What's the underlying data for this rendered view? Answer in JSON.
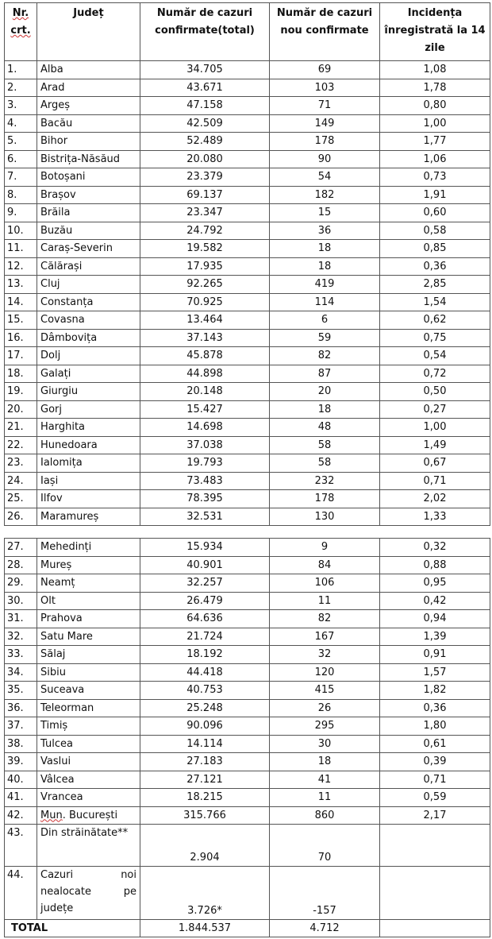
{
  "header": {
    "nr": "Nr. crt.",
    "judet": "Județ",
    "total": "Număr de cazuri confirmate(total)",
    "new": "Număr de cazuri nou confirmate",
    "incidence": "Incidența înregistrată la 14 zile"
  },
  "rows": [
    {
      "nr": "1.",
      "judet": "Alba",
      "total": "34.705",
      "new": "69",
      "inc": "1,08"
    },
    {
      "nr": "2.",
      "judet": "Arad",
      "total": "43.671",
      "new": "103",
      "inc": "1,78"
    },
    {
      "nr": "3.",
      "judet": "Argeș",
      "total": "47.158",
      "new": "71",
      "inc": "0,80"
    },
    {
      "nr": "4.",
      "judet": "Bacău",
      "total": "42.509",
      "new": "149",
      "inc": "1,00"
    },
    {
      "nr": "5.",
      "judet": "Bihor",
      "total": "52.489",
      "new": "178",
      "inc": "1,77"
    },
    {
      "nr": "6.",
      "judet": "Bistrița-Năsăud",
      "total": "20.080",
      "new": "90",
      "inc": "1,06"
    },
    {
      "nr": "7.",
      "judet": "Botoșani",
      "total": "23.379",
      "new": "54",
      "inc": "0,73"
    },
    {
      "nr": "8.",
      "judet": "Brașov",
      "total": "69.137",
      "new": "182",
      "inc": "1,91"
    },
    {
      "nr": "9.",
      "judet": "Brăila",
      "total": "23.347",
      "new": "15",
      "inc": "0,60"
    },
    {
      "nr": "10.",
      "judet": "Buzău",
      "total": "24.792",
      "new": "36",
      "inc": "0,58"
    },
    {
      "nr": "11.",
      "judet": "Caraș-Severin",
      "total": "19.582",
      "new": "18",
      "inc": "0,85"
    },
    {
      "nr": "12.",
      "judet": "Călărași",
      "total": "17.935",
      "new": "18",
      "inc": "0,36"
    },
    {
      "nr": "13.",
      "judet": "Cluj",
      "total": "92.265",
      "new": "419",
      "inc": "2,85"
    },
    {
      "nr": "14.",
      "judet": "Constanța",
      "total": "70.925",
      "new": "114",
      "inc": "1,54"
    },
    {
      "nr": "15.",
      "judet": "Covasna",
      "total": "13.464",
      "new": "6",
      "inc": "0,62"
    },
    {
      "nr": "16.",
      "judet": "Dâmbovița",
      "total": "37.143",
      "new": "59",
      "inc": "0,75"
    },
    {
      "nr": "17.",
      "judet": "Dolj",
      "total": "45.878",
      "new": "82",
      "inc": "0,54"
    },
    {
      "nr": "18.",
      "judet": "Galați",
      "total": "44.898",
      "new": "87",
      "inc": "0,72"
    },
    {
      "nr": "19.",
      "judet": "Giurgiu",
      "total": "20.148",
      "new": "20",
      "inc": "0,50"
    },
    {
      "nr": "20.",
      "judet": "Gorj",
      "total": "15.427",
      "new": "18",
      "inc": "0,27"
    },
    {
      "nr": "21.",
      "judet": "Harghita",
      "total": "14.698",
      "new": "48",
      "inc": "1,00"
    },
    {
      "nr": "22.",
      "judet": "Hunedoara",
      "total": "37.038",
      "new": "58",
      "inc": "1,49"
    },
    {
      "nr": "23.",
      "judet": "Ialomița",
      "total": "19.793",
      "new": "58",
      "inc": "0,67"
    },
    {
      "nr": "24.",
      "judet": "Iași",
      "total": "73.483",
      "new": "232",
      "inc": "0,71"
    },
    {
      "nr": "25.",
      "judet": "Ilfov",
      "total": "78.395",
      "new": "178",
      "inc": "2,02"
    },
    {
      "nr": "26.",
      "judet": "Maramureș",
      "total": "32.531",
      "new": "130",
      "inc": "1,33"
    },
    {
      "nr": "27.",
      "judet": "Mehedinți",
      "total": "15.934",
      "new": "9",
      "inc": "0,32"
    },
    {
      "nr": "28.",
      "judet": "Mureș",
      "total": "40.901",
      "new": "84",
      "inc": "0,88"
    },
    {
      "nr": "29.",
      "judet": "Neamț",
      "total": "32.257",
      "new": "106",
      "inc": "0,95"
    },
    {
      "nr": "30.",
      "judet": "Olt",
      "total": "26.479",
      "new": "11",
      "inc": "0,42"
    },
    {
      "nr": "31.",
      "judet": "Prahova",
      "total": "64.636",
      "new": "82",
      "inc": "0,94"
    },
    {
      "nr": "32.",
      "judet": "Satu Mare",
      "total": "21.724",
      "new": "167",
      "inc": "1,39"
    },
    {
      "nr": "33.",
      "judet": "Sălaj",
      "total": "18.192",
      "new": "32",
      "inc": "0,91"
    },
    {
      "nr": "34.",
      "judet": "Sibiu",
      "total": "44.418",
      "new": "120",
      "inc": "1,57"
    },
    {
      "nr": "35.",
      "judet": "Suceava",
      "total": "40.753",
      "new": "415",
      "inc": "1,82"
    },
    {
      "nr": "36.",
      "judet": "Teleorman",
      "total": "25.248",
      "new": "26",
      "inc": "0,36"
    },
    {
      "nr": "37.",
      "judet": "Timiș",
      "total": "90.096",
      "new": "295",
      "inc": "1,80"
    },
    {
      "nr": "38.",
      "judet": "Tulcea",
      "total": "14.114",
      "new": "30",
      "inc": "0,61"
    },
    {
      "nr": "39.",
      "judet": "Vaslui",
      "total": "27.183",
      "new": "18",
      "inc": "0,39"
    },
    {
      "nr": "40.",
      "judet": "Vâlcea",
      "total": "27.121",
      "new": "41",
      "inc": "0,71"
    },
    {
      "nr": "41.",
      "judet": "Vrancea",
      "total": "18.215",
      "new": "11",
      "inc": "0,59"
    },
    {
      "nr": "42.",
      "judet": "Mun. București",
      "total": "315.766",
      "new": "860",
      "inc": "2,17"
    }
  ],
  "abroad": {
    "nr": "43.",
    "judet": "Din străinătate**",
    "total": "2.904",
    "new": "70"
  },
  "unallocated": {
    "nr": "44.",
    "judet": "Cazuri noi nealocate pe județe",
    "total": "3.726*",
    "new": "-157"
  },
  "total_row": {
    "label": "TOTAL",
    "total": "1.844.537",
    "new": "4.712"
  }
}
